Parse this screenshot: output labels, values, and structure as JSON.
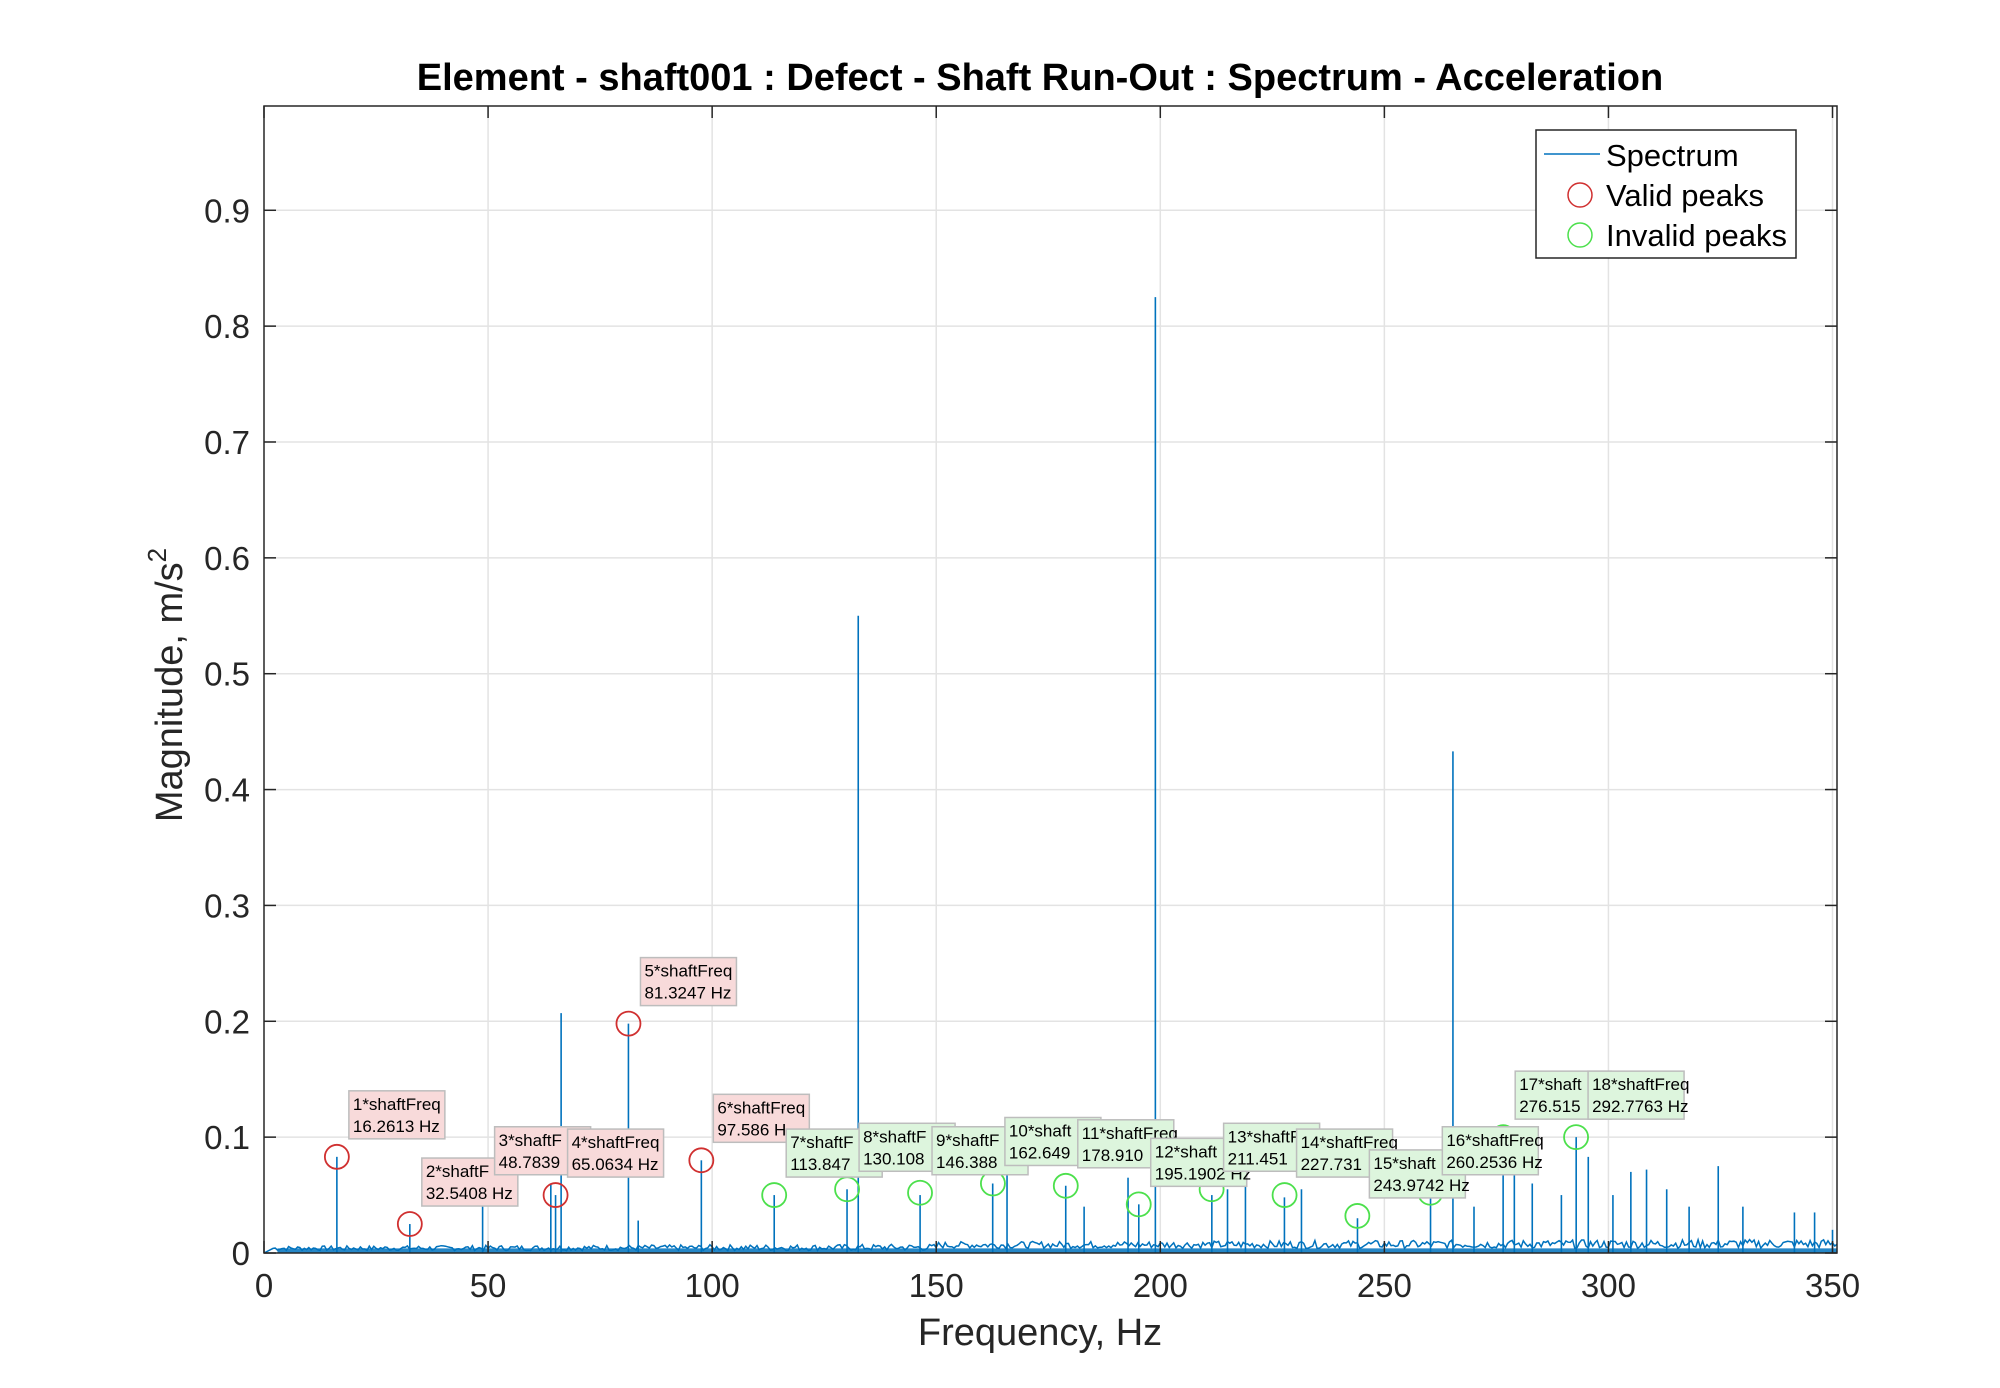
{
  "chart_data": {
    "type": "line",
    "title": "Element - shaft001 : Defect - Shaft Run-Out : Spectrum - Acceleration",
    "xlabel": "Frequency, Hz",
    "ylabel_main": "Magnitude, m/s",
    "ylabel_sup": "2",
    "xlim": [
      0,
      351
    ],
    "ylim": [
      0,
      0.99
    ],
    "xticks": [
      0,
      50,
      100,
      150,
      200,
      250,
      300,
      350
    ],
    "yticks": [
      0,
      0.1,
      0.2,
      0.3,
      0.4,
      0.5,
      0.6,
      0.7,
      0.8,
      0.9
    ],
    "xtick_labels": [
      "0",
      "50",
      "100",
      "150",
      "200",
      "250",
      "300",
      "350"
    ],
    "ytick_labels": [
      "0",
      "0.1",
      "0.2",
      "0.3",
      "0.4",
      "0.5",
      "0.6",
      "0.7",
      "0.8",
      "0.9"
    ],
    "grid": true,
    "legend_position": "top-right",
    "legend": [
      "Spectrum",
      "Valid peaks",
      "Invalid peaks"
    ],
    "colors": {
      "spectrum": "#0072BD",
      "valid": "#D03030",
      "invalid": "#4CE04C",
      "valid_box": "#F8DADA",
      "invalid_box": "#DDF5DD"
    },
    "spectrum_lines": [
      {
        "x": 16.26,
        "y": 0.083
      },
      {
        "x": 32.54,
        "y": 0.025
      },
      {
        "x": 48.78,
        "y": 0.055
      },
      {
        "x": 64.0,
        "y": 0.06
      },
      {
        "x": 66.3,
        "y": 0.207
      },
      {
        "x": 65.06,
        "y": 0.05
      },
      {
        "x": 81.32,
        "y": 0.198
      },
      {
        "x": 83.5,
        "y": 0.028
      },
      {
        "x": 97.59,
        "y": 0.08
      },
      {
        "x": 113.85,
        "y": 0.05
      },
      {
        "x": 130.1,
        "y": 0.055
      },
      {
        "x": 132.6,
        "y": 0.55
      },
      {
        "x": 146.4,
        "y": 0.05
      },
      {
        "x": 162.6,
        "y": 0.06
      },
      {
        "x": 165.8,
        "y": 0.085
      },
      {
        "x": 178.9,
        "y": 0.058
      },
      {
        "x": 183.0,
        "y": 0.04
      },
      {
        "x": 192.8,
        "y": 0.065
      },
      {
        "x": 195.2,
        "y": 0.042
      },
      {
        "x": 198.9,
        "y": 0.825
      },
      {
        "x": 211.5,
        "y": 0.05
      },
      {
        "x": 215.0,
        "y": 0.055
      },
      {
        "x": 219.0,
        "y": 0.06
      },
      {
        "x": 227.7,
        "y": 0.048
      },
      {
        "x": 231.5,
        "y": 0.055
      },
      {
        "x": 244.0,
        "y": 0.03
      },
      {
        "x": 260.3,
        "y": 0.05
      },
      {
        "x": 265.3,
        "y": 0.433
      },
      {
        "x": 270.0,
        "y": 0.04
      },
      {
        "x": 276.5,
        "y": 0.1
      },
      {
        "x": 279.0,
        "y": 0.085
      },
      {
        "x": 283.0,
        "y": 0.06
      },
      {
        "x": 289.5,
        "y": 0.05
      },
      {
        "x": 292.8,
        "y": 0.1
      },
      {
        "x": 295.5,
        "y": 0.083
      },
      {
        "x": 301.0,
        "y": 0.05
      },
      {
        "x": 305.0,
        "y": 0.07
      },
      {
        "x": 308.5,
        "y": 0.072
      },
      {
        "x": 313.0,
        "y": 0.055
      },
      {
        "x": 318.0,
        "y": 0.04
      },
      {
        "x": 324.5,
        "y": 0.075
      },
      {
        "x": 330.0,
        "y": 0.04
      },
      {
        "x": 341.5,
        "y": 0.035
      },
      {
        "x": 346.0,
        "y": 0.035
      },
      {
        "x": 350.0,
        "y": 0.02
      }
    ],
    "peaks": [
      {
        "x": 16.2613,
        "y": 0.083,
        "valid": true,
        "label1": "1*shaftFreq",
        "label2": "16.2613 Hz"
      },
      {
        "x": 32.5408,
        "y": 0.025,
        "valid": true,
        "label1": "2*shaftF",
        "label2": "32.5408 Hz"
      },
      {
        "x": 48.7839,
        "y": 0.052,
        "valid": true,
        "label1": "3*shaftF",
        "label2": "48.7839"
      },
      {
        "x": 65.0634,
        "y": 0.05,
        "valid": true,
        "label1": "4*shaftFreq",
        "label2": "65.0634 Hz"
      },
      {
        "x": 81.3247,
        "y": 0.198,
        "valid": true,
        "label1": "5*shaftFreq",
        "label2": "81.3247 Hz"
      },
      {
        "x": 97.586,
        "y": 0.08,
        "valid": true,
        "label1": "6*shaftFreq",
        "label2": "97.586 H"
      },
      {
        "x": 113.847,
        "y": 0.05,
        "valid": false,
        "label1": "7*shaftF",
        "label2": "113.847"
      },
      {
        "x": 130.108,
        "y": 0.055,
        "valid": false,
        "label1": "8*shaftF",
        "label2": "130.108"
      },
      {
        "x": 146.388,
        "y": 0.052,
        "valid": false,
        "label1": "9*shaftF",
        "label2": "146.388"
      },
      {
        "x": 162.649,
        "y": 0.06,
        "valid": false,
        "label1": "10*shaft",
        "label2": "162.649"
      },
      {
        "x": 178.91,
        "y": 0.058,
        "valid": false,
        "label1": "11*shaftFreq",
        "label2": "178.910"
      },
      {
        "x": 195.1902,
        "y": 0.042,
        "valid": false,
        "label1": "12*shaft",
        "label2": "195.1902 Hz"
      },
      {
        "x": 211.451,
        "y": 0.055,
        "valid": false,
        "label1": "13*shaftFreq",
        "label2": "211.451"
      },
      {
        "x": 227.731,
        "y": 0.05,
        "valid": false,
        "label1": "14*shaftFreq",
        "label2": "227.731"
      },
      {
        "x": 243.9742,
        "y": 0.032,
        "valid": false,
        "label1": "15*shaft",
        "label2": "243.9742 Hz"
      },
      {
        "x": 260.2536,
        "y": 0.052,
        "valid": false,
        "label1": "16*shaftFreq",
        "label2": "260.2536 Hz"
      },
      {
        "x": 276.515,
        "y": 0.1,
        "valid": false,
        "label1": "17*shaft",
        "label2": "276.515"
      },
      {
        "x": 292.7763,
        "y": 0.1,
        "valid": false,
        "label1": "18*shaftFreq",
        "label2": "292.7763 Hz"
      }
    ]
  }
}
